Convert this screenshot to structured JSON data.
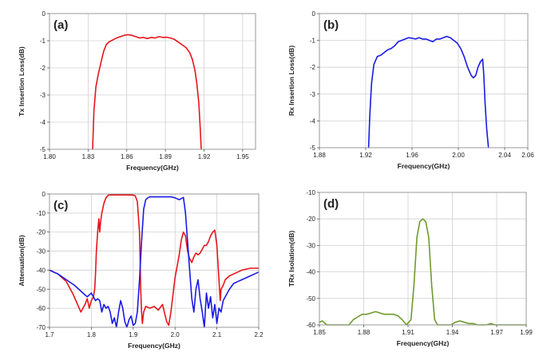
{
  "chart_data": [
    {
      "panel": "(a)",
      "type": "line",
      "xlabel": "Frequency(GHz)",
      "ylabel": "Tx Insertion Loss(dB)",
      "xlim": [
        1.8,
        1.96
      ],
      "ylim": [
        -5,
        0
      ],
      "xticks": [
        1.8,
        1.83,
        1.86,
        1.89,
        1.92,
        1.95
      ],
      "xtick_labels": [
        "1.80",
        "1.83",
        "1.86",
        "1.89",
        "1.92",
        "1.95"
      ],
      "yticks": [
        0,
        -1,
        -2,
        -3,
        -4,
        -5
      ],
      "ytick_labels": [
        "0",
        "-1",
        "-2",
        "-3",
        "-4",
        "-5"
      ],
      "grid": true,
      "series": [
        {
          "color": "#e8141b",
          "x": [
            1.8335,
            1.8345,
            1.836,
            1.838,
            1.84,
            1.842,
            1.844,
            1.846,
            1.848,
            1.85,
            1.852,
            1.855,
            1.858,
            1.861,
            1.864,
            1.867,
            1.87,
            1.873,
            1.876,
            1.879,
            1.882,
            1.885,
            1.888,
            1.891,
            1.894,
            1.897,
            1.9,
            1.903,
            1.906,
            1.909,
            1.911,
            1.913,
            1.9145,
            1.916,
            1.917,
            1.9178
          ],
          "y": [
            -5.0,
            -3.6,
            -2.7,
            -2.2,
            -1.8,
            -1.4,
            -1.15,
            -1.05,
            -1.0,
            -0.95,
            -0.9,
            -0.85,
            -0.8,
            -0.78,
            -0.8,
            -0.85,
            -0.9,
            -0.88,
            -0.92,
            -0.88,
            -0.9,
            -0.85,
            -0.88,
            -0.87,
            -0.9,
            -0.95,
            -1.05,
            -1.15,
            -1.25,
            -1.45,
            -1.7,
            -2.1,
            -2.6,
            -3.3,
            -4.2,
            -5.0
          ]
        }
      ]
    },
    {
      "panel": "(b)",
      "type": "line",
      "xlabel": "Frequency(GHz)",
      "ylabel": "Rx Insertion Loss(dB)",
      "xlim": [
        1.88,
        2.06
      ],
      "ylim": [
        -5,
        0
      ],
      "xticks": [
        1.88,
        1.92,
        1.96,
        2.0,
        2.04,
        2.06
      ],
      "xtick_labels": [
        "1.88",
        "1.92",
        "1.96",
        "2.00",
        "2.04",
        "2.06"
      ],
      "yticks": [
        0,
        -1,
        -2,
        -3,
        -4,
        -5
      ],
      "ytick_labels": [
        "0",
        "-1",
        "-2",
        "-3",
        "-4",
        "-5"
      ],
      "grid": true,
      "series": [
        {
          "color": "#1a1ae6",
          "x": [
            1.9225,
            1.9235,
            1.925,
            1.927,
            1.93,
            1.933,
            1.936,
            1.939,
            1.942,
            1.945,
            1.948,
            1.951,
            1.954,
            1.957,
            1.96,
            1.963,
            1.966,
            1.969,
            1.972,
            1.975,
            1.978,
            1.981,
            1.984,
            1.987,
            1.99,
            1.993,
            1.996,
            1.999,
            2.002,
            2.005,
            2.008,
            2.011,
            2.013,
            2.015,
            2.017,
            2.019,
            2.021,
            2.022,
            2.023,
            2.0245,
            2.026
          ],
          "y": [
            -5.0,
            -3.8,
            -2.6,
            -1.9,
            -1.6,
            -1.55,
            -1.45,
            -1.35,
            -1.3,
            -1.2,
            -1.05,
            -1.0,
            -0.95,
            -0.9,
            -0.92,
            -0.95,
            -0.9,
            -0.95,
            -0.95,
            -1.0,
            -1.05,
            -0.95,
            -0.95,
            -0.9,
            -0.85,
            -0.9,
            -1.0,
            -1.1,
            -1.3,
            -1.6,
            -2.0,
            -2.3,
            -2.4,
            -2.3,
            -2.0,
            -1.8,
            -1.7,
            -2.3,
            -3.3,
            -4.3,
            -5.0
          ]
        }
      ]
    },
    {
      "panel": "(c)",
      "type": "line",
      "xlabel": "Frequency(GHz)",
      "ylabel": "Attenuation(dB)",
      "xlim": [
        1.7,
        2.2
      ],
      "ylim": [
        -70,
        0
      ],
      "xticks": [
        1.7,
        1.8,
        1.9,
        2.0,
        2.1,
        2.2
      ],
      "xtick_labels": [
        "1.7",
        "1.8",
        "1.9",
        "2.0",
        "2.1",
        "2.2"
      ],
      "yticks": [
        0,
        -10,
        -20,
        -30,
        -40,
        -50,
        -60,
        -70
      ],
      "ytick_labels": [
        "0",
        "-10",
        "-20",
        "-30",
        "-40",
        "-50",
        "-60",
        "-70"
      ],
      "grid": true,
      "series": [
        {
          "color": "#e8141b",
          "x": [
            1.7,
            1.72,
            1.74,
            1.755,
            1.765,
            1.775,
            1.785,
            1.79,
            1.795,
            1.8,
            1.805,
            1.808,
            1.81,
            1.812,
            1.815,
            1.818,
            1.82,
            1.822,
            1.825,
            1.83,
            1.835,
            1.84,
            1.845,
            1.85,
            1.86,
            1.87,
            1.88,
            1.89,
            1.9,
            1.905,
            1.91,
            1.915,
            1.918,
            1.92,
            1.922,
            1.925,
            1.93,
            1.94,
            1.95,
            1.96,
            1.97,
            1.98,
            1.985,
            1.99,
            2.0,
            2.01,
            2.015,
            2.02,
            2.025,
            2.03,
            2.035,
            2.04,
            2.045,
            2.05,
            2.055,
            2.06,
            2.065,
            2.07,
            2.075,
            2.08,
            2.085,
            2.09,
            2.095,
            2.1,
            2.105,
            2.108,
            2.11,
            2.115,
            2.12,
            2.13,
            2.14,
            2.15,
            2.16,
            2.18,
            2.2
          ],
          "y": [
            -40,
            -42,
            -46,
            -52,
            -57,
            -62,
            -58,
            -55,
            -60,
            -56,
            -54,
            -50,
            -42,
            -30,
            -20,
            -13,
            -20,
            -15,
            -10,
            -5,
            -2,
            -0.7,
            -0.5,
            -0.5,
            -0.5,
            -0.5,
            -0.5,
            -0.5,
            -0.6,
            -1,
            -4,
            -20,
            -50,
            -62,
            -68,
            -62,
            -59,
            -60,
            -59,
            -61,
            -58,
            -67,
            -69,
            -62,
            -44,
            -32,
            -24,
            -20,
            -22,
            -30,
            -34,
            -36,
            -33,
            -31,
            -32,
            -31,
            -29,
            -27,
            -27,
            -25,
            -22,
            -20,
            -19,
            -27,
            -45,
            -56,
            -50,
            -48,
            -45,
            -43,
            -42,
            -41,
            -40,
            -39,
            -39
          ]
        },
        {
          "color": "#1a1ae6",
          "x": [
            1.7,
            1.72,
            1.74,
            1.76,
            1.78,
            1.79,
            1.8,
            1.81,
            1.815,
            1.82,
            1.825,
            1.83,
            1.835,
            1.84,
            1.845,
            1.85,
            1.855,
            1.86,
            1.865,
            1.87,
            1.875,
            1.88,
            1.885,
            1.89,
            1.895,
            1.9,
            1.905,
            1.91,
            1.915,
            1.92,
            1.925,
            1.93,
            1.935,
            1.94,
            1.95,
            1.96,
            1.97,
            1.98,
            1.99,
            2.0,
            2.01,
            2.02,
            2.025,
            2.03,
            2.035,
            2.04,
            2.045,
            2.05,
            2.055,
            2.06,
            2.065,
            2.07,
            2.075,
            2.08,
            2.085,
            2.09,
            2.095,
            2.1,
            2.105,
            2.11,
            2.115,
            2.12,
            2.13,
            2.14,
            2.15,
            2.16,
            2.17,
            2.18,
            2.19,
            2.2
          ],
          "y": [
            -40,
            -42,
            -45,
            -48,
            -52,
            -54,
            -52,
            -56,
            -55,
            -56,
            -62,
            -58,
            -60,
            -59,
            -62,
            -68,
            -65,
            -70,
            -62,
            -56,
            -60,
            -67,
            -70,
            -66,
            -64,
            -69,
            -68,
            -62,
            -45,
            -25,
            -8,
            -3,
            -2,
            -1.5,
            -1.5,
            -1.5,
            -1.5,
            -1.5,
            -1.5,
            -2,
            -3,
            -1.8,
            -10,
            -25,
            -40,
            -55,
            -62,
            -50,
            -45,
            -55,
            -62,
            -70,
            -52,
            -60,
            -54,
            -65,
            -58,
            -68,
            -60,
            -62,
            -56,
            -54,
            -50,
            -47,
            -46,
            -45,
            -44,
            -43,
            -42,
            -41
          ]
        }
      ]
    },
    {
      "panel": "(d)",
      "type": "line",
      "xlabel": "Frequency(GHz)",
      "ylabel": "TRx Isolation(dB)",
      "xlim": [
        1.85,
        1.99
      ],
      "ylim": [
        -60,
        -10
      ],
      "xticks": [
        1.85,
        1.88,
        1.91,
        1.94,
        1.97,
        1.99
      ],
      "xtick_labels": [
        "1.85",
        "1.88",
        "1.91",
        "1.94",
        "1.97",
        "1.99"
      ],
      "yticks": [
        -10,
        -20,
        -30,
        -40,
        -50,
        -60
      ],
      "ytick_labels": [
        "-10",
        "-20",
        "-30",
        "-40",
        "-50",
        "-60"
      ],
      "grid": true,
      "series": [
        {
          "color": "#6f9a2d",
          "x": [
            1.85,
            1.852,
            1.855,
            1.858,
            1.861,
            1.864,
            1.867,
            1.87,
            1.873,
            1.876,
            1.879,
            1.882,
            1.885,
            1.888,
            1.891,
            1.894,
            1.897,
            1.9,
            1.903,
            1.906,
            1.909,
            1.912,
            1.914,
            1.916,
            1.918,
            1.92,
            1.922,
            1.924,
            1.926,
            1.928,
            1.93,
            1.933,
            1.936,
            1.939,
            1.942,
            1.945,
            1.948,
            1.951,
            1.954,
            1.957,
            1.96,
            1.963,
            1.966,
            1.969,
            1.972,
            1.975,
            1.978,
            1.981,
            1.984,
            1.987,
            1.99
          ],
          "y": [
            -59,
            -58.5,
            -60,
            -60,
            -60,
            -60,
            -60,
            -60,
            -58,
            -57,
            -56,
            -56,
            -55.5,
            -55,
            -55.5,
            -56,
            -56,
            -56,
            -56.5,
            -58,
            -60,
            -58,
            -45,
            -27,
            -21,
            -20,
            -21,
            -27,
            -45,
            -58,
            -60,
            -60,
            -60,
            -60,
            -59,
            -58.5,
            -59,
            -59.5,
            -59.5,
            -60,
            -60,
            -60,
            -59.5,
            -60,
            -60,
            -60,
            -60,
            -60,
            -60,
            -60,
            -60
          ]
        }
      ]
    }
  ]
}
